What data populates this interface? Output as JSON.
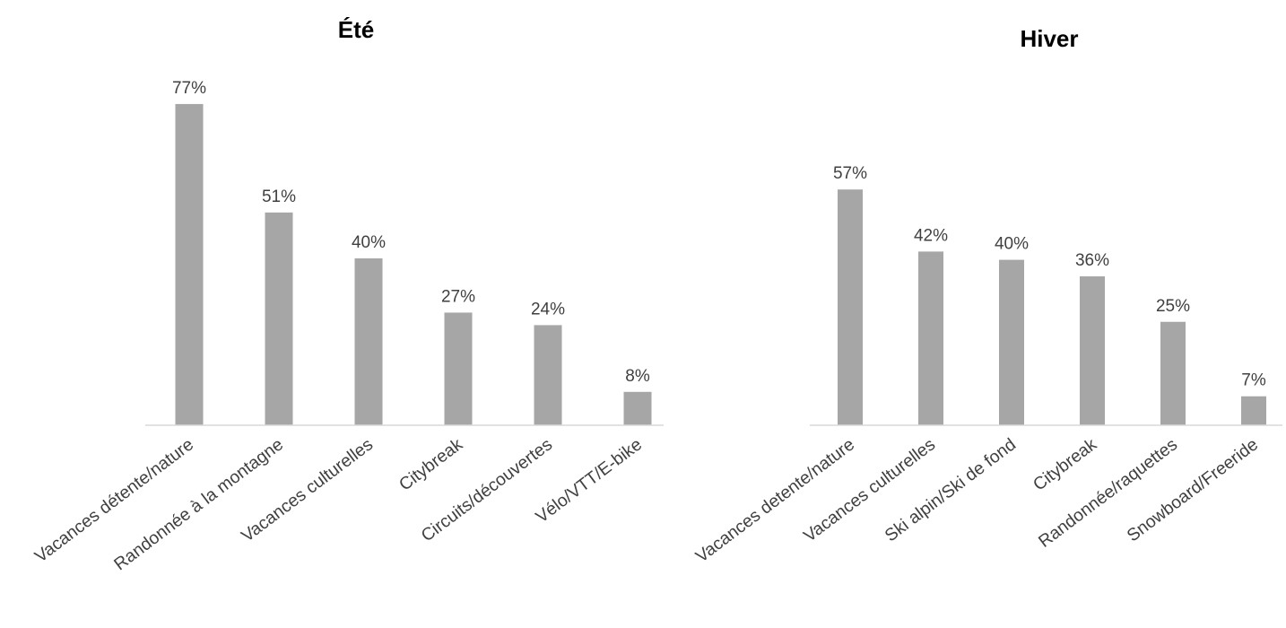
{
  "chart_data": [
    {
      "type": "bar",
      "title": "Été",
      "categories": [
        "Vacances détente/nature",
        "Randonnée à la montagne",
        "Vacances culturelles",
        "Citybreak",
        "Circuits/découvertes",
        "Vélo/VTT/E-bike"
      ],
      "values": [
        77,
        51,
        40,
        27,
        24,
        8
      ],
      "value_labels": [
        "77%",
        "51%",
        "40%",
        "27%",
        "24%",
        "8%"
      ],
      "unit": "%",
      "xlabel": "",
      "ylabel": "",
      "ylim": [
        0,
        80
      ],
      "grid": false,
      "bar_color": "#a6a6a6"
    },
    {
      "type": "bar",
      "title": "Hiver",
      "categories": [
        "Vacances detente/nature",
        "Vacances culturelles",
        "Ski alpin/Ski de fond",
        "Citybreak",
        "Randonnée/raquettes",
        "Snowboard/Freeride"
      ],
      "values": [
        57,
        42,
        40,
        36,
        25,
        7
      ],
      "value_labels": [
        "57%",
        "42%",
        "40%",
        "36%",
        "25%",
        "7%"
      ],
      "unit": "%",
      "xlabel": "",
      "ylabel": "",
      "ylim": [
        0,
        60
      ],
      "grid": false,
      "bar_color": "#a6a6a6"
    }
  ]
}
